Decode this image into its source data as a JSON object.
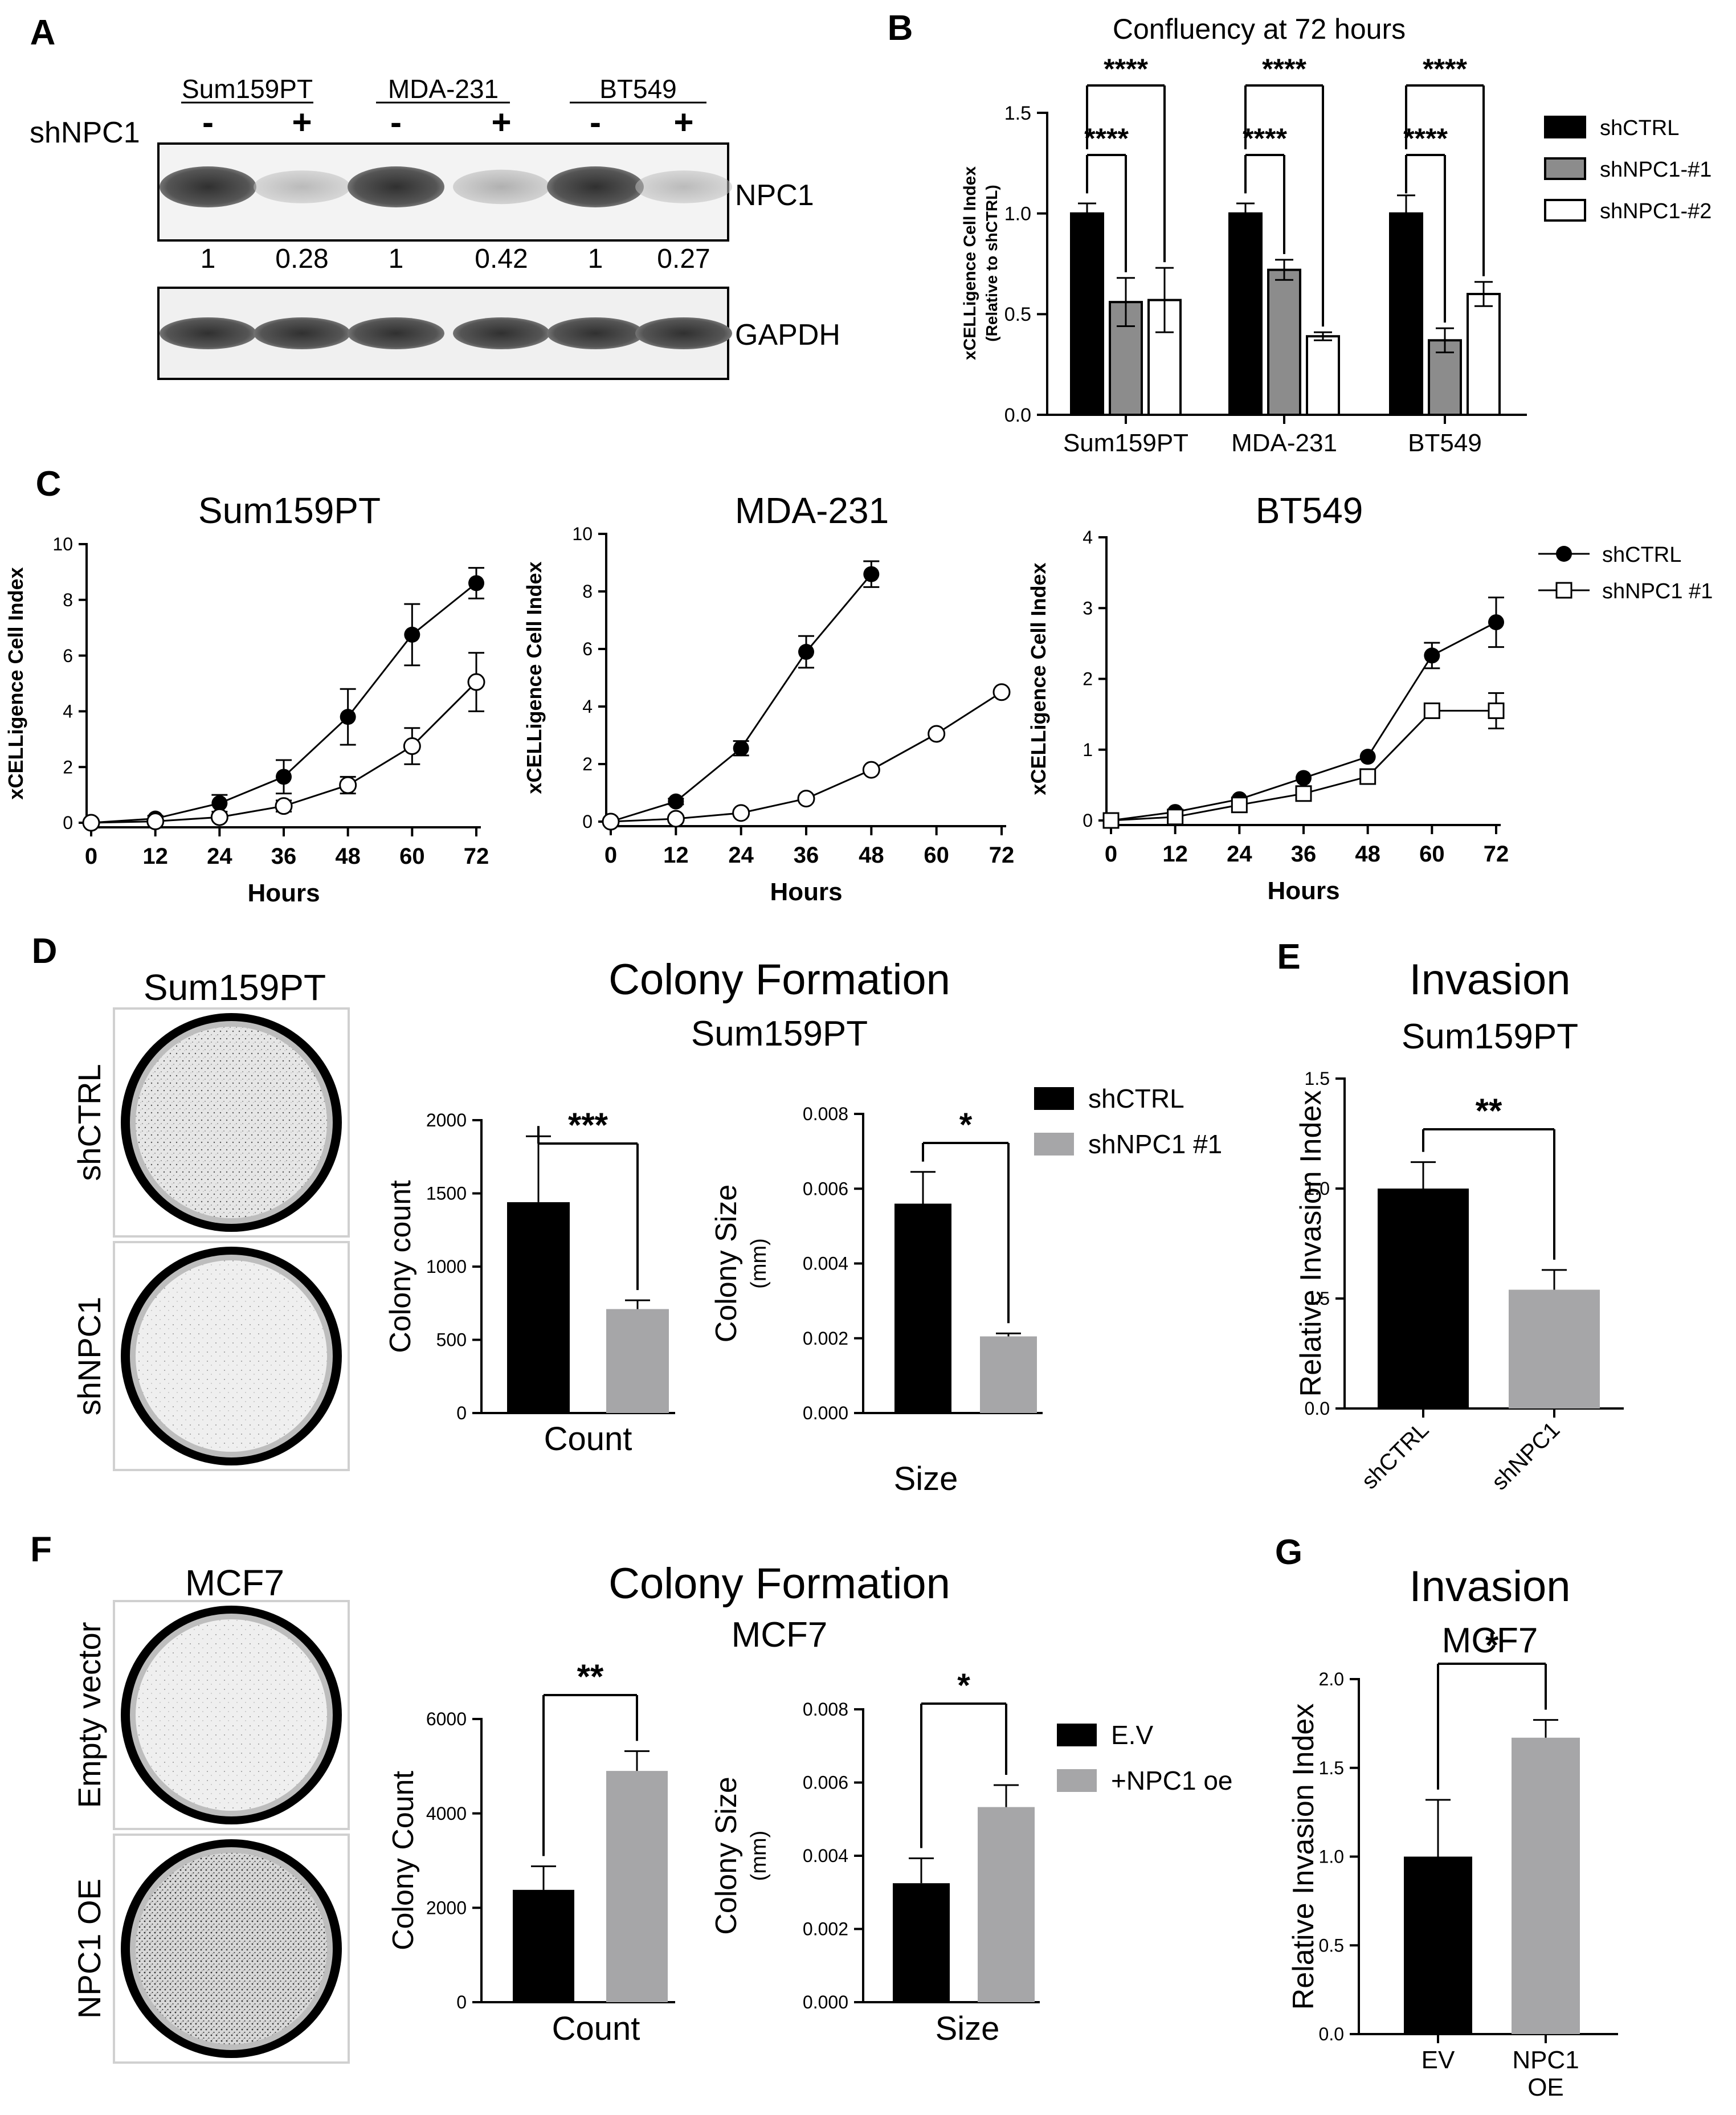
{
  "panel_letters": [
    "A",
    "B",
    "C",
    "D",
    "E",
    "F",
    "G"
  ],
  "western": {
    "groups": [
      "Sum159PT",
      "MDA-231",
      "BT549"
    ],
    "row_label": "shNPC1",
    "signs": [
      "-",
      "+",
      "-",
      "+",
      "-",
      "+"
    ],
    "bands": [
      "NPC1",
      "GAPDH"
    ],
    "quant": [
      "1",
      "0.28",
      "1",
      "0.42",
      "1",
      "0.27"
    ]
  },
  "colony_images": {
    "D": {
      "title": "Sum159PT",
      "rows": [
        "shCTRL",
        "shNPC1"
      ]
    },
    "F": {
      "title": "MCF7",
      "rows": [
        "Empty vector",
        "NPC1 OE"
      ]
    }
  },
  "headings": {
    "D": [
      "Colony Formation",
      "Sum159PT"
    ],
    "E": [
      "Invasion",
      "Sum159PT"
    ],
    "F": [
      "Colony Formation",
      "MCF7"
    ],
    "G": [
      "Invasion",
      "MCF7"
    ]
  },
  "colors": {
    "black": "#000000",
    "gray": "#a6a6a8",
    "white": "#ffffff",
    "b_gray": "#8c8c8c"
  },
  "chart_data": [
    {
      "id": "B",
      "type": "bar",
      "title": "Confluency at 72 hours",
      "ylabel": "xCELLigence Cell Index",
      "ylabel2": "(Relative to shCTRL)",
      "categories": [
        "Sum159PT",
        "MDA-231",
        "BT549"
      ],
      "ylim": [
        0,
        1.5
      ],
      "yticks": [
        "0.0",
        "0.5",
        "1.0",
        "1.5"
      ],
      "legend_position": "right",
      "series": [
        {
          "name": "shCTRL",
          "values": [
            1.0,
            1.0,
            1.0
          ],
          "errors": [
            0.05,
            0.05,
            0.09
          ]
        },
        {
          "name": "shNPC1-#1",
          "values": [
            0.56,
            0.72,
            0.37
          ],
          "errors": [
            0.12,
            0.05,
            0.06
          ]
        },
        {
          "name": "shNPC1-#2",
          "values": [
            0.57,
            0.39,
            0.6
          ],
          "errors": [
            0.16,
            0.02,
            0.06
          ]
        }
      ],
      "significance": [
        "****",
        "****",
        "****",
        "****",
        "****",
        "****"
      ]
    },
    {
      "id": "C1",
      "type": "line",
      "title": "Sum159PT",
      "xlabel": "Hours",
      "ylabel": "xCELLigence Cell Index",
      "x": [
        0,
        12,
        24,
        36,
        48,
        60,
        72
      ],
      "xticks": [
        "0",
        "12",
        "24",
        "36",
        "48",
        "60",
        "72"
      ],
      "ylim": [
        0,
        10
      ],
      "yticks": [
        "0",
        "2",
        "4",
        "6",
        "8",
        "10"
      ],
      "series": [
        {
          "name": "shCTRL",
          "marker": "filled-circle",
          "values": [
            0,
            0.15,
            0.7,
            1.65,
            3.8,
            6.75,
            8.6
          ],
          "errors": [
            0,
            0.1,
            0.3,
            0.6,
            1.0,
            1.1,
            0.55
          ]
        },
        {
          "name": "shNPC1 #1",
          "marker": "open-circle",
          "values": [
            0,
            0.05,
            0.2,
            0.6,
            1.35,
            2.75,
            5.05
          ],
          "errors": [
            0,
            0.05,
            0.1,
            0.2,
            0.3,
            0.65,
            1.05
          ]
        }
      ]
    },
    {
      "id": "C2",
      "type": "line",
      "title": "MDA-231",
      "xlabel": "Hours",
      "ylabel": "xCELLigence Cell Index",
      "x": [
        0,
        12,
        24,
        36,
        48,
        60,
        72
      ],
      "xticks": [
        "0",
        "12",
        "24",
        "36",
        "48",
        "60",
        "72"
      ],
      "ylim": [
        0,
        10
      ],
      "yticks": [
        "0",
        "2",
        "4",
        "6",
        "8",
        "10"
      ],
      "series": [
        {
          "name": "shCTRL",
          "marker": "filled-circle",
          "x": [
            0,
            12,
            24,
            36,
            48
          ],
          "values": [
            0,
            0.7,
            2.55,
            5.9,
            8.6
          ],
          "errors": [
            0,
            0.1,
            0.25,
            0.55,
            0.45
          ]
        },
        {
          "name": "shNPC1 #1",
          "marker": "open-circle",
          "x": [
            0,
            12,
            24,
            36,
            48,
            60,
            72
          ],
          "values": [
            0,
            0.1,
            0.3,
            0.8,
            1.8,
            3.05,
            4.5
          ],
          "errors": [
            0,
            0,
            0,
            0,
            0,
            0,
            0
          ]
        }
      ]
    },
    {
      "id": "C3",
      "type": "line",
      "title": "BT549",
      "xlabel": "Hours",
      "ylabel": "xCELLigence Cell Index",
      "x": [
        0,
        12,
        24,
        36,
        48,
        60,
        72
      ],
      "xticks": [
        "0",
        "12",
        "24",
        "36",
        "48",
        "60",
        "72"
      ],
      "ylim": [
        0,
        4
      ],
      "yticks": [
        "0",
        "1",
        "2",
        "3",
        "4"
      ],
      "legend_position": "top-right",
      "series": [
        {
          "name": "shCTRL",
          "marker": "filled-circle",
          "values": [
            0,
            0.12,
            0.3,
            0.6,
            0.9,
            2.33,
            2.8
          ],
          "errors": [
            0,
            0,
            0,
            0,
            0,
            0.18,
            0.35
          ]
        },
        {
          "name": "shNPC1 #1",
          "marker": "open-square",
          "values": [
            0,
            0.05,
            0.22,
            0.38,
            0.62,
            1.55,
            1.55
          ],
          "errors": [
            0,
            0,
            0,
            0,
            0,
            0,
            0.25
          ]
        }
      ]
    },
    {
      "id": "D1",
      "type": "bar",
      "xlabel": "Count",
      "ylabel": "Colony count",
      "categories": [
        "shCTRL",
        "shNPC1 #1"
      ],
      "ylim": [
        0,
        2000
      ],
      "yticks": [
        "0",
        "500",
        "1000",
        "1500",
        "2000"
      ],
      "values": [
        1440,
        710
      ],
      "errors": [
        450,
        60
      ],
      "significance": "***"
    },
    {
      "id": "D2",
      "type": "bar",
      "xlabel": "Size",
      "ylabel": "Colony Size",
      "ylabel2": "(mm)",
      "categories": [
        "shCTRL",
        "shNPC1 #1"
      ],
      "ylim": [
        0,
        0.008
      ],
      "yticks": [
        "0.000",
        "0.002",
        "0.004",
        "0.006",
        "0.008"
      ],
      "values": [
        0.0056,
        0.00205
      ],
      "errors": [
        0.00085,
        8e-05
      ],
      "significance": "*",
      "legend": [
        "shCTRL",
        "shNPC1 #1"
      ]
    },
    {
      "id": "E",
      "type": "bar",
      "ylabel": "Relative Invasion Index",
      "categories": [
        "shCTRL",
        "shNPC1"
      ],
      "ylim": [
        0,
        1.5
      ],
      "yticks": [
        "0.0",
        "0.5",
        "1.0",
        "1.5"
      ],
      "values": [
        1.0,
        0.54
      ],
      "errors": [
        0.12,
        0.09
      ],
      "significance": "**"
    },
    {
      "id": "F1",
      "type": "bar",
      "xlabel": "Count",
      "ylabel": "Colony Count",
      "categories": [
        "E.V",
        "+NPC1 oe"
      ],
      "ylim": [
        0,
        6000
      ],
      "yticks": [
        "0",
        "2000",
        "4000",
        "6000"
      ],
      "values": [
        2380,
        4900
      ],
      "errors": [
        500,
        420
      ],
      "significance": "**"
    },
    {
      "id": "F2",
      "type": "bar",
      "xlabel": "Size",
      "ylabel": "Colony Size",
      "ylabel2": "(mm)",
      "categories": [
        "E.V",
        "+NPC1 oe"
      ],
      "ylim": [
        0,
        0.008
      ],
      "yticks": [
        "0.000",
        "0.002",
        "0.004",
        "0.006",
        "0.008"
      ],
      "values": [
        0.00325,
        0.00533
      ],
      "errors": [
        0.00068,
        0.0006
      ],
      "significance": "*",
      "legend": [
        "E.V",
        "+NPC1 oe"
      ]
    },
    {
      "id": "G",
      "type": "bar",
      "ylabel": "Relative Invasion Index",
      "categories": [
        "EV",
        "NPC1\nOE"
      ],
      "ylim": [
        0,
        2.0
      ],
      "yticks": [
        "0.0",
        "0.5",
        "1.0",
        "1.5",
        "2.0"
      ],
      "values": [
        1.0,
        1.67
      ],
      "errors": [
        0.32,
        0.1
      ],
      "significance": "*"
    }
  ]
}
